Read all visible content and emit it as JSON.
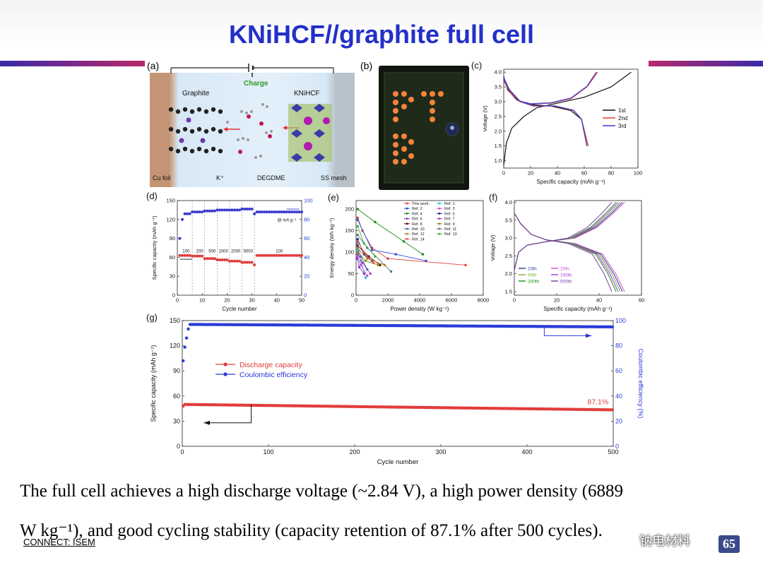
{
  "slide": {
    "title": "KNiHCF//graphite full cell",
    "caption_line1": "The full cell achieves a high discharge voltage (~2.84 V), a high power density (6889",
    "caption_line2": "W kg⁻¹), and good cycling stability (capacity retention of 87.1% after 500 cycles).",
    "footer": "CONNECT: ISEM",
    "page_number": "65",
    "watermark": "钠电材料",
    "accent_color": "#2330c8"
  },
  "panel_a": {
    "label": "(a)",
    "charge": "Charge",
    "graphite": "Graphite",
    "knihcf": "KNiHCF",
    "cu_foil": "Cu foil",
    "k_ion": "K⁺",
    "degdme": "DEGDME",
    "ss_mesh": "SS mesh"
  },
  "panel_b": {
    "label": "(b)"
  },
  "chart_data": [
    {
      "id": "c",
      "type": "line",
      "label": "(c)",
      "xlabel": "Specific capacity (mAh g⁻¹)",
      "ylabel": "Voltage (V)",
      "xlim": [
        0,
        100
      ],
      "ylim": [
        0.75,
        4.1
      ],
      "xticks": [
        "0",
        "20",
        "40",
        "60",
        "80",
        "100"
      ],
      "yticks": [
        "1.0",
        "1.5",
        "2.0",
        "2.5",
        "3.0",
        "3.5",
        "4.0"
      ],
      "legend": "right",
      "series": [
        {
          "name": "1st",
          "color": "#111111",
          "charge": [
            [
              0,
              0.85
            ],
            [
              2,
              1.6
            ],
            [
              6,
              2.1
            ],
            [
              15,
              2.5
            ],
            [
              25,
              2.8
            ],
            [
              40,
              2.95
            ],
            [
              60,
              3.15
            ],
            [
              80,
              3.5
            ],
            [
              95,
              4.0
            ]
          ],
          "discharge": [
            [
              0,
              3.85
            ],
            [
              3,
              3.4
            ],
            [
              10,
              3.05
            ],
            [
              20,
              2.9
            ],
            [
              35,
              2.85
            ],
            [
              50,
              2.7
            ],
            [
              58,
              2.4
            ],
            [
              62,
              1.5
            ]
          ]
        },
        {
          "name": "2nd",
          "color": "#e23c3c",
          "charge": [
            [
              0,
              3.7
            ],
            [
              5,
              3.3
            ],
            [
              12,
              3.0
            ],
            [
              20,
              2.92
            ],
            [
              35,
              2.95
            ],
            [
              50,
              3.1
            ],
            [
              62,
              3.5
            ],
            [
              70,
              4.0
            ]
          ],
          "discharge": [
            [
              0,
              3.8
            ],
            [
              4,
              3.4
            ],
            [
              12,
              3.0
            ],
            [
              22,
              2.85
            ],
            [
              38,
              2.85
            ],
            [
              52,
              2.7
            ],
            [
              58,
              2.4
            ],
            [
              63,
              1.5
            ]
          ]
        },
        {
          "name": "3rd",
          "color": "#3a3acc",
          "charge": [
            [
              0,
              3.75
            ],
            [
              5,
              3.35
            ],
            [
              12,
              3.02
            ],
            [
              20,
              2.93
            ],
            [
              35,
              2.96
            ],
            [
              50,
              3.12
            ],
            [
              62,
              3.52
            ],
            [
              69,
              4.0
            ]
          ],
          "discharge": [
            [
              0,
              3.82
            ],
            [
              4,
              3.42
            ],
            [
              12,
              3.02
            ],
            [
              22,
              2.86
            ],
            [
              38,
              2.86
            ],
            [
              52,
              2.71
            ],
            [
              58,
              2.41
            ],
            [
              62,
              1.5
            ]
          ]
        }
      ]
    },
    {
      "id": "d",
      "type": "scatter",
      "label": "(d)",
      "xlabel": "Cycle number",
      "ylabel": "Specific capacity (mAh g⁻¹)",
      "y2label": "Coulombic efficiency (%)",
      "xlim": [
        0,
        50
      ],
      "ylim": [
        0,
        150
      ],
      "y2lim": [
        0,
        100
      ],
      "xticks": [
        "0",
        "10",
        "20",
        "30",
        "40",
        "50"
      ],
      "yticks": [
        "0",
        "30",
        "60",
        "90",
        "120",
        "150"
      ],
      "y2ticks": [
        "0",
        "20",
        "40",
        "60",
        "80",
        "100"
      ],
      "unit_note": "@ mA g⁻¹",
      "rate_labels": [
        {
          "x": 3.5,
          "text": "100"
        },
        {
          "x": 9,
          "text": "200"
        },
        {
          "x": 14,
          "text": "500"
        },
        {
          "x": 18.5,
          "text": "1000"
        },
        {
          "x": 23.5,
          "text": "2000"
        },
        {
          "x": 28.5,
          "text": "5000"
        },
        {
          "x": 41,
          "text": "100"
        }
      ],
      "dividers": [
        6,
        11,
        16,
        21,
        26,
        31
      ],
      "capacity_segments": [
        {
          "from": 1,
          "to": 5,
          "value": 63
        },
        {
          "from": 6,
          "to": 10,
          "value": 62
        },
        {
          "from": 11,
          "to": 15,
          "value": 58
        },
        {
          "from": 16,
          "to": 20,
          "value": 56
        },
        {
          "from": 21,
          "to": 25,
          "value": 54
        },
        {
          "from": 26,
          "to": 30,
          "value": 52
        },
        {
          "from": 31,
          "to": 31,
          "value": 48
        },
        {
          "from": 32,
          "to": 50,
          "value": 63
        }
      ],
      "ce_segments": [
        {
          "from": 1,
          "to": 1,
          "value": 60
        },
        {
          "from": 2,
          "to": 2,
          "value": 80
        },
        {
          "from": 3,
          "to": 5,
          "value": 86
        },
        {
          "from": 6,
          "to": 10,
          "value": 88
        },
        {
          "from": 11,
          "to": 15,
          "value": 89
        },
        {
          "from": 16,
          "to": 20,
          "value": 90
        },
        {
          "from": 21,
          "to": 25,
          "value": 90
        },
        {
          "from": 26,
          "to": 30,
          "value": 91
        },
        {
          "from": 31,
          "to": 31,
          "value": 86
        },
        {
          "from": 32,
          "to": 50,
          "value": 88
        }
      ],
      "colors": {
        "capacity": "#e23c3c",
        "ce": "#3a3acc"
      }
    },
    {
      "id": "e",
      "type": "line",
      "label": "(e)",
      "xlabel": "Power density (W kg⁻¹)",
      "ylabel": "Energy density (Wh kg⁻¹)",
      "xlim": [
        0,
        8000
      ],
      "ylim": [
        0,
        220
      ],
      "xticks": [
        "0",
        "2000",
        "4000",
        "6000",
        "8000"
      ],
      "yticks": [
        "0",
        "50",
        "100",
        "150",
        "200"
      ],
      "legend": "top-right",
      "series": [
        {
          "name": "This work",
          "color": "#e23c3c",
          "points": [
            [
              100,
              180
            ],
            [
              400,
              150
            ],
            [
              1000,
              110
            ],
            [
              2000,
              85
            ],
            [
              6889,
              70
            ]
          ]
        },
        {
          "name": "Ref. 1",
          "color": "#19c7d6",
          "points": [
            [
              100,
              105
            ],
            [
              300,
              80
            ],
            [
              600,
              40
            ]
          ]
        },
        {
          "name": "Ref. 2",
          "color": "#2a4ed8",
          "points": [
            [
              100,
              175
            ],
            [
              1000,
              105
            ],
            [
              2500,
              95
            ],
            [
              4400,
              80
            ]
          ]
        },
        {
          "name": "Ref. 3",
          "color": "#d24dd2",
          "points": [
            [
              80,
              90
            ],
            [
              300,
              70
            ],
            [
              700,
              45
            ]
          ]
        },
        {
          "name": "Ref. 4",
          "color": "#1a8a1a",
          "points": [
            [
              100,
              200
            ],
            [
              1200,
              170
            ],
            [
              3000,
              125
            ],
            [
              4200,
              95
            ]
          ]
        },
        {
          "name": "Ref. 5",
          "color": "#1a2a6e",
          "points": [
            [
              100,
              130
            ],
            [
              500,
              95
            ],
            [
              1000,
              80
            ]
          ]
        },
        {
          "name": "Ref. 6",
          "color": "#8a2be2",
          "points": [
            [
              80,
              85
            ],
            [
              200,
              65
            ],
            [
              500,
              50
            ]
          ]
        },
        {
          "name": "Ref. 7",
          "color": "#b03ab0",
          "points": [
            [
              100,
              95
            ],
            [
              400,
              75
            ],
            [
              900,
              50
            ]
          ]
        },
        {
          "name": "Ref. 8",
          "color": "#600000",
          "points": [
            [
              100,
              115
            ],
            [
              800,
              90
            ],
            [
              1500,
              70
            ]
          ]
        },
        {
          "name": "Ref. 9",
          "color": "#8a8a1a",
          "points": [
            [
              100,
              100
            ],
            [
              600,
              80
            ],
            [
              1400,
              70
            ]
          ]
        },
        {
          "name": "Ref. 10",
          "color": "#3a6ea5",
          "points": [
            [
              50,
              120
            ],
            [
              300,
              90
            ],
            [
              700,
              60
            ]
          ]
        },
        {
          "name": "Ref. 11",
          "color": "#4a7a7a",
          "points": [
            [
              100,
              140
            ],
            [
              700,
              110
            ],
            [
              2200,
              55
            ]
          ]
        },
        {
          "name": "Ref. 12",
          "color": "#c07a2a",
          "points": [
            [
              100,
              110
            ],
            [
              700,
              85
            ],
            [
              1800,
              70
            ]
          ]
        },
        {
          "name": "Ref. 13",
          "color": "#35b535",
          "points": [
            [
              100,
              160
            ],
            [
              500,
              120
            ],
            [
              1200,
              90
            ]
          ]
        },
        {
          "name": "Ref. 14",
          "color": "#e05a5a",
          "points": [
            [
              100,
              125
            ],
            [
              500,
              100
            ],
            [
              1100,
              75
            ]
          ]
        }
      ]
    },
    {
      "id": "f",
      "type": "line",
      "label": "(f)",
      "xlabel": "Specific capacity (mAh g⁻¹)",
      "ylabel": "Voltage (V)",
      "xlim": [
        0,
        60
      ],
      "ylim": [
        1.4,
        4.05
      ],
      "xticks": [
        "0",
        "20",
        "40",
        "60"
      ],
      "yticks": [
        "1.5",
        "2.0",
        "2.5",
        "3.0",
        "3.5",
        "4.0"
      ],
      "legend": "bottom-left",
      "series": [
        {
          "name": "10th",
          "color": "#2a3a9a",
          "cap": 51
        },
        {
          "name": "20th",
          "color": "#d24dd2",
          "cap": 52
        },
        {
          "name": "50th",
          "color": "#7ab03a",
          "cap": 50
        },
        {
          "name": "100th",
          "color": "#a03ad0",
          "cap": 49
        },
        {
          "name": "200th",
          "color": "#1a8a1a",
          "cap": 48
        },
        {
          "name": "500th",
          "color": "#7a3aa0",
          "cap": 46
        }
      ]
    },
    {
      "id": "g",
      "type": "scatter",
      "label": "(g)",
      "xlabel": "Cycle number",
      "ylabel": "Specific capacity (mAh g⁻¹)",
      "y2label": "Coulombic efficiency (%)",
      "xlim": [
        0,
        500
      ],
      "ylim": [
        0,
        150
      ],
      "y2lim": [
        0,
        100
      ],
      "xticks": [
        "0",
        "100",
        "200",
        "300",
        "400",
        "500"
      ],
      "yticks": [
        "0",
        "30",
        "60",
        "90",
        "120",
        "150"
      ],
      "y2ticks": [
        "0",
        "20",
        "40",
        "60",
        "80",
        "100"
      ],
      "legend": "upper-left",
      "annotation": "87.1%",
      "series": [
        {
          "name": "Discharge capacity",
          "color": "#e23c3c",
          "start": 50,
          "end": 43.5,
          "first": 48
        },
        {
          "name": "Coulombic efficiency",
          "color": "#2a3ad8",
          "plateau": 97,
          "end": 95,
          "first": 68
        }
      ]
    }
  ]
}
